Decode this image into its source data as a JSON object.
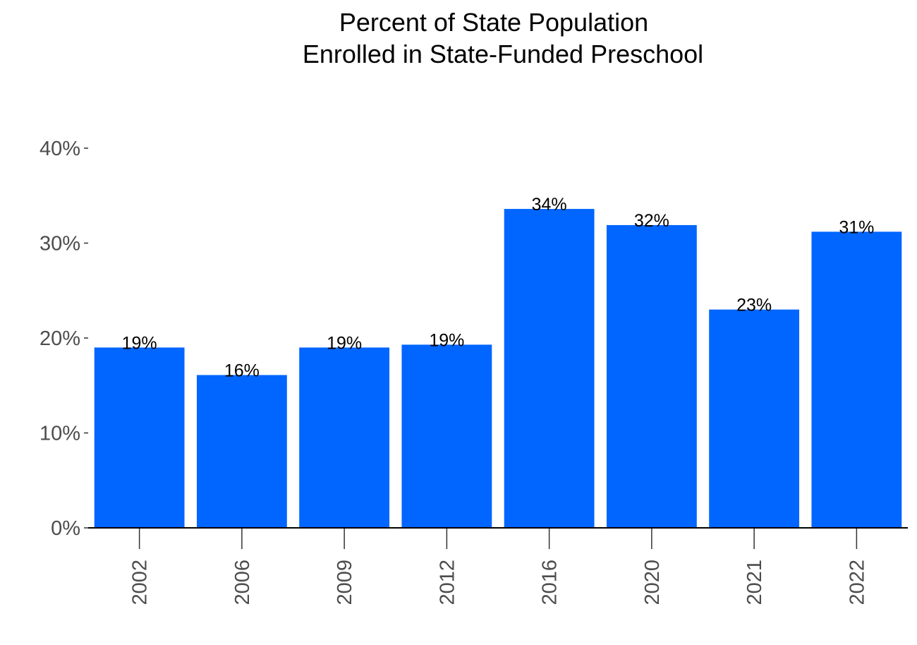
{
  "chart_data": {
    "type": "bar",
    "title": [
      "Percent of State Population",
      "Enrolled in State-Funded Preschool"
    ],
    "xlabel": "",
    "ylabel": "",
    "categories": [
      "2002",
      "2006",
      "2009",
      "2012",
      "2016",
      "2020",
      "2021",
      "2022"
    ],
    "values": [
      19.0,
      16.1,
      19.0,
      19.3,
      33.6,
      31.9,
      23.0,
      31.2
    ],
    "data_labels": [
      "19%",
      "16%",
      "19%",
      "19%",
      "34%",
      "32%",
      "23%",
      "31%"
    ],
    "ylim": [
      0,
      40
    ],
    "yticks": [
      0,
      10,
      20,
      30,
      40
    ],
    "ytick_labels": [
      "0%",
      "10%",
      "20%",
      "30%",
      "40%"
    ],
    "grid": false,
    "legend": "none",
    "bar_color": "#0066FF",
    "x_tick_rotation": 90
  }
}
